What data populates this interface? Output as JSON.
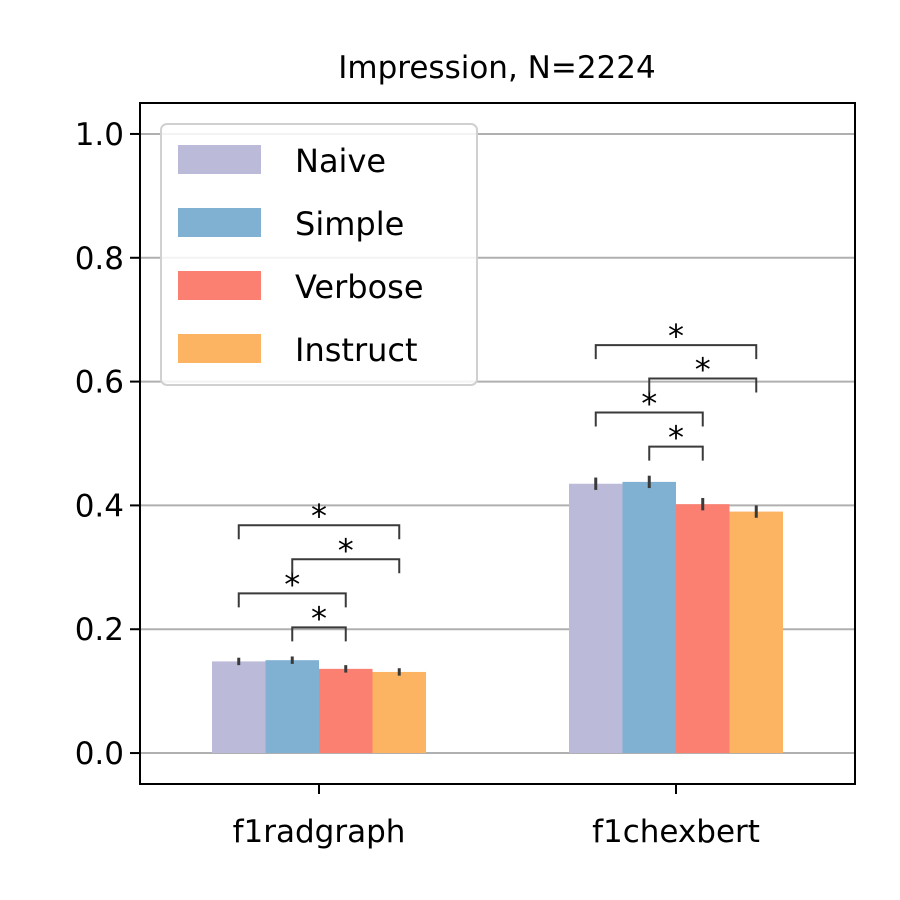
{
  "chart_data": {
    "type": "bar",
    "title": "Impression, N=2224",
    "xlabel": "",
    "ylabel": "",
    "categories": [
      "f1radgraph",
      "f1chexbert"
    ],
    "series": [
      {
        "name": "Naive",
        "color": "#bcbad9",
        "values": [
          0.148,
          0.435
        ],
        "errors": [
          0.006,
          0.01
        ]
      },
      {
        "name": "Simple",
        "color": "#80b1d3",
        "values": [
          0.15,
          0.438
        ],
        "errors": [
          0.006,
          0.01
        ]
      },
      {
        "name": "Verbose",
        "color": "#fb8072",
        "values": [
          0.136,
          0.402
        ],
        "errors": [
          0.006,
          0.01
        ]
      },
      {
        "name": "Instruct",
        "color": "#fdb462",
        "values": [
          0.131,
          0.39
        ],
        "errors": [
          0.006,
          0.01
        ]
      }
    ],
    "ylim": [
      -0.05,
      1.05
    ],
    "yticks": [
      0.0,
      0.2,
      0.4,
      0.6,
      0.8,
      1.0
    ],
    "ytick_labels": [
      "0.0",
      "0.2",
      "0.4",
      "0.6",
      "0.8",
      "1.0"
    ],
    "grid": "y",
    "legend_position": "top-left",
    "significance": [
      {
        "category": 0,
        "from": 1,
        "to": 2,
        "y": 0.203,
        "label": "*"
      },
      {
        "category": 0,
        "from": 0,
        "to": 2,
        "y": 0.258,
        "label": "*"
      },
      {
        "category": 0,
        "from": 1,
        "to": 3,
        "y": 0.313,
        "label": "*"
      },
      {
        "category": 0,
        "from": 0,
        "to": 3,
        "y": 0.368,
        "label": "*"
      },
      {
        "category": 1,
        "from": 1,
        "to": 2,
        "y": 0.495,
        "label": "*"
      },
      {
        "category": 1,
        "from": 0,
        "to": 2,
        "y": 0.55,
        "label": "*"
      },
      {
        "category": 1,
        "from": 1,
        "to": 3,
        "y": 0.605,
        "label": "*"
      },
      {
        "category": 1,
        "from": 0,
        "to": 3,
        "y": 0.659,
        "label": "*"
      }
    ]
  }
}
